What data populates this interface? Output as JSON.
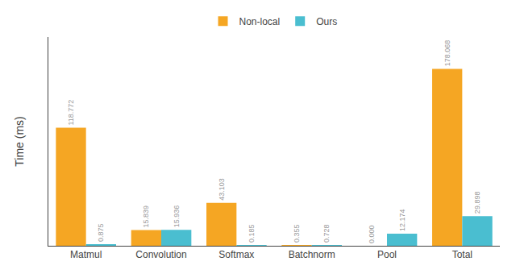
{
  "chart_data": {
    "type": "bar",
    "categories": [
      "Matmul",
      "Convolution",
      "Softmax",
      "Batchnorm",
      "Pool",
      "Total"
    ],
    "series": [
      {
        "name": "Non-local",
        "color": "#F5A623",
        "values": [
          118.772,
          15.839,
          43.103,
          0.355,
          0.0,
          178.068
        ],
        "value_labels": [
          "118.772",
          "15.839",
          "43.103",
          "0.355",
          "0.000",
          "178.068"
        ]
      },
      {
        "name": "Ours",
        "color": "#4ABED0",
        "values": [
          0.875,
          15.936,
          0.185,
          0.728,
          12.174,
          29.898
        ],
        "value_labels": [
          "0.875",
          "15.936",
          "0.185",
          "0.728",
          "12.174",
          "29.898"
        ]
      }
    ],
    "ylabel": "Time (ms)",
    "ylim": [
      0,
      210
    ],
    "yticks": [],
    "tick_labels": "x",
    "grid": false,
    "legend": "top",
    "data_labels": true
  }
}
